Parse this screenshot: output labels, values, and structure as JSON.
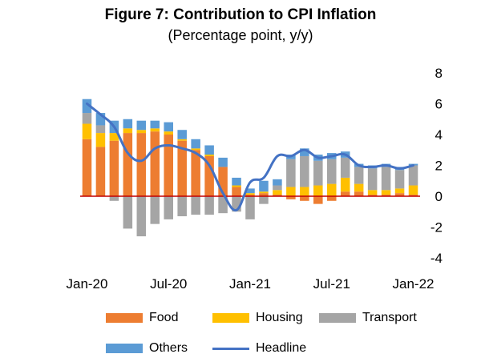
{
  "chart_data": {
    "type": "bar",
    "stacked": true,
    "title": "Figure 7: Contribution to CPI Inflation",
    "subtitle": "(Percentage point, y/y)",
    "xlabel": "",
    "ylabel": "",
    "ylim": [
      -4,
      8
    ],
    "yticks": [
      -4,
      -2,
      0,
      2,
      4,
      6,
      8
    ],
    "categories": [
      "Jan-20",
      "Feb-20",
      "Mar-20",
      "Apr-20",
      "May-20",
      "Jun-20",
      "Jul-20",
      "Aug-20",
      "Sep-20",
      "Oct-20",
      "Nov-20",
      "Dec-20",
      "Jan-21",
      "Feb-21",
      "Mar-21",
      "Apr-21",
      "May-21",
      "Jun-21",
      "Jul-21",
      "Aug-21",
      "Sep-21",
      "Oct-21",
      "Nov-21",
      "Dec-21",
      "Jan-22"
    ],
    "xtick_labels": [
      "Jan-20",
      "Jul-20",
      "Jan-21",
      "Jul-21",
      "Jan-22"
    ],
    "xtick_indices": [
      0,
      6,
      12,
      18,
      24
    ],
    "series": [
      {
        "name": "Food",
        "color": "#ED7D31",
        "values": [
          3.7,
          3.2,
          3.6,
          4.1,
          4.1,
          4.2,
          4.0,
          3.6,
          3.0,
          2.6,
          1.9,
          0.6,
          0.1,
          0.2,
          0.1,
          -0.2,
          -0.3,
          -0.5,
          -0.3,
          0.3,
          0.3,
          0.1,
          0.1,
          0.2,
          0.1
        ]
      },
      {
        "name": "Housing",
        "color": "#FFC000",
        "values": [
          1.0,
          0.9,
          0.5,
          0.3,
          0.2,
          0.2,
          0.2,
          0.1,
          0.1,
          0.1,
          0.0,
          0.1,
          0.1,
          0.1,
          0.3,
          0.6,
          0.6,
          0.7,
          0.8,
          0.9,
          0.5,
          0.3,
          0.3,
          0.3,
          0.6
        ]
      },
      {
        "name": "Transport",
        "color": "#A5A5A5",
        "values": [
          0.7,
          0.5,
          -0.3,
          -2.1,
          -2.6,
          -1.8,
          -1.5,
          -1.3,
          -1.2,
          -1.2,
          -1.1,
          -1.0,
          -1.5,
          -0.5,
          0.3,
          1.8,
          2.0,
          1.6,
          1.6,
          1.3,
          1.1,
          1.4,
          1.5,
          1.2,
          1.3
        ]
      },
      {
        "name": "Others",
        "color": "#5B9BD5",
        "values": [
          0.9,
          0.8,
          0.8,
          0.6,
          0.6,
          0.5,
          0.6,
          0.6,
          0.6,
          0.6,
          0.6,
          0.5,
          0.3,
          0.7,
          0.4,
          0.3,
          0.5,
          0.4,
          0.4,
          0.4,
          0.2,
          0.2,
          0.2,
          0.2,
          0.1
        ]
      }
    ],
    "line_series": {
      "name": "Headline",
      "color": "#4472C4",
      "values": [
        6.0,
        5.3,
        4.5,
        2.8,
        2.3,
        3.1,
        3.3,
        3.1,
        2.8,
        2.0,
        0.2,
        -0.9,
        0.9,
        1.2,
        2.6,
        2.6,
        3.0,
        2.5,
        2.6,
        2.7,
        2.0,
        1.9,
        2.0,
        1.8,
        2.0
      ]
    },
    "zero_line_color": "#C00000",
    "legend_position": "bottom"
  },
  "legend": {
    "food": "Food",
    "housing": "Housing",
    "transport": "Transport",
    "others": "Others",
    "headline": "Headline"
  }
}
